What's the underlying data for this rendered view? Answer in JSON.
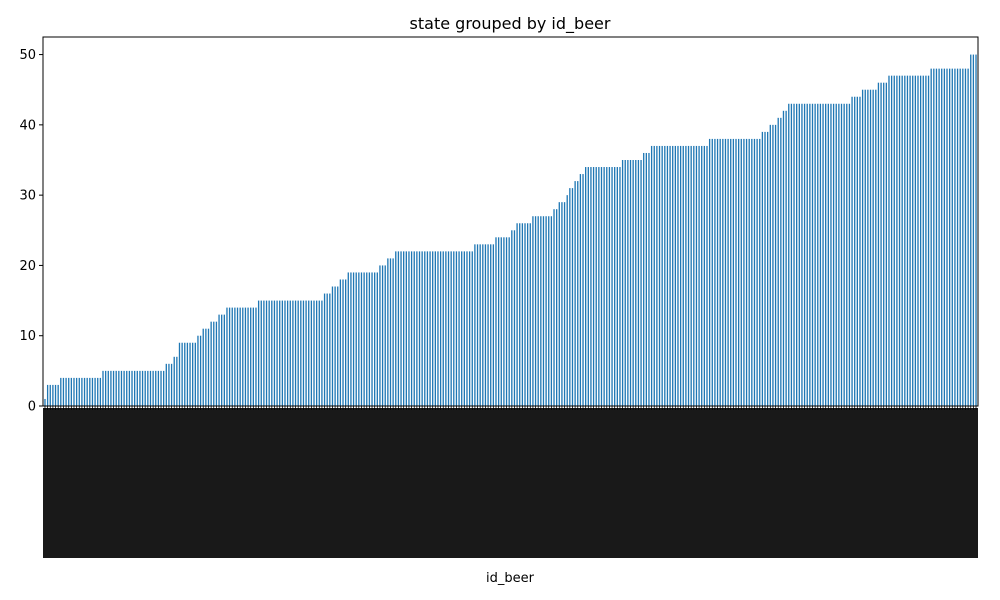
{
  "chart_data": {
    "type": "bar",
    "title": "state grouped by id_beer",
    "xlabel": "id_beer",
    "ylabel": "",
    "ylim": [
      0,
      52.5
    ],
    "yticks": [
      0,
      10,
      20,
      30,
      40,
      50
    ],
    "bar_color": "#1f77b4",
    "grid": false,
    "legend": false,
    "steps": [
      [
        1,
        1
      ],
      [
        3,
        5
      ],
      [
        4,
        16
      ],
      [
        5,
        24
      ],
      [
        6,
        3
      ],
      [
        7,
        2
      ],
      [
        9,
        7
      ],
      [
        10,
        2
      ],
      [
        11,
        3
      ],
      [
        12,
        3
      ],
      [
        13,
        3
      ],
      [
        14,
        12
      ],
      [
        15,
        25
      ],
      [
        16,
        3
      ],
      [
        17,
        3
      ],
      [
        18,
        3
      ],
      [
        19,
        12
      ],
      [
        20,
        3
      ],
      [
        21,
        3
      ],
      [
        22,
        30
      ],
      [
        23,
        8
      ],
      [
        24,
        6
      ],
      [
        25,
        2
      ],
      [
        26,
        6
      ],
      [
        27,
        8
      ],
      [
        28,
        2
      ],
      [
        29,
        3
      ],
      [
        30,
        1
      ],
      [
        31,
        2
      ],
      [
        32,
        2
      ],
      [
        33,
        2
      ],
      [
        34,
        14
      ],
      [
        35,
        8
      ],
      [
        36,
        3
      ],
      [
        37,
        22
      ],
      [
        38,
        20
      ],
      [
        39,
        3
      ],
      [
        40,
        3
      ],
      [
        41,
        2
      ],
      [
        42,
        2
      ],
      [
        43,
        24
      ],
      [
        44,
        4
      ],
      [
        45,
        6
      ],
      [
        46,
        4
      ],
      [
        47,
        16
      ],
      [
        48,
        15
      ],
      [
        50,
        3
      ]
    ]
  }
}
